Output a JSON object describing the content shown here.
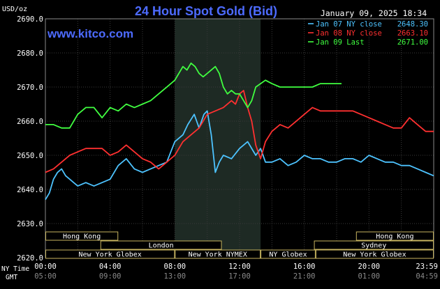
{
  "chart_data": {
    "type": "line",
    "title": "24 Hour Spot Gold (Bid)",
    "site": "www.kitco.com",
    "timestamp": "January 09, 2025 18:34",
    "ylabel": "USD/oz",
    "ylim": [
      2620,
      2690
    ],
    "yticks": [
      "2690.0",
      "2680.0",
      "2670.0",
      "2660.0",
      "2650.0",
      "2640.0",
      "2630.0",
      "2620.0"
    ],
    "xlim": [
      0,
      24
    ],
    "x_row_label": "NY Time",
    "x_ticks": [
      "00:00",
      "04:00",
      "08:00",
      "12:00",
      "16:00",
      "20:00",
      "23:59"
    ],
    "gmt_row_label": "GMT",
    "gmt_ticks": [
      "05:00",
      "09:00",
      "13:00",
      "17:00",
      "21:00",
      "01:00",
      "04:59"
    ],
    "highlight_region": {
      "name": "NY NYMEX",
      "start": 8,
      "end": 13.3
    },
    "grid": true,
    "legend": [
      {
        "name": "Jan 07 NY close",
        "value": "2648.30",
        "color": "#4dc3ff"
      },
      {
        "name": "Jan 08 NY close",
        "value": "2663.10",
        "color": "#ff3030"
      },
      {
        "name": "Jan 09 Last",
        "value": "2671.00",
        "color": "#40ff40"
      }
    ],
    "sessions": [
      {
        "label": "Hong Kong",
        "row": 0,
        "start": 0,
        "end": 4.5
      },
      {
        "label": "Hong Kong",
        "row": 0,
        "start": 19.2,
        "end": 24
      },
      {
        "label": "London",
        "row": 1,
        "start": 3.4,
        "end": 10.9
      },
      {
        "label": "Sydney",
        "row": 1,
        "start": 16.6,
        "end": 24
      },
      {
        "label": "New York Globex",
        "row": 2,
        "start": 0,
        "end": 8
      },
      {
        "label": "New York NYMEX",
        "row": 2,
        "start": 8,
        "end": 13.3
      },
      {
        "label": "NY Globex",
        "row": 2,
        "start": 13.3,
        "end": 16.7
      },
      {
        "label": "New York Globex",
        "row": 2,
        "start": 16.7,
        "end": 24
      }
    ],
    "series": [
      {
        "name": "Jan 07 NY close",
        "color": "#4dc3ff",
        "x": [
          0,
          0.25,
          0.5,
          0.75,
          1.0,
          1.25,
          1.5,
          1.75,
          2.0,
          2.5,
          3.0,
          3.5,
          4.0,
          4.5,
          5.0,
          5.5,
          6.0,
          6.5,
          7.0,
          7.5,
          8.0,
          8.5,
          8.8,
          9.2,
          9.5,
          9.8,
          10.0,
          10.25,
          10.5,
          10.75,
          11.0,
          11.5,
          12.0,
          12.5,
          13.0,
          13.3,
          13.6,
          14.0,
          14.5,
          15.0,
          15.5,
          16.0,
          16.5,
          17.0,
          17.5,
          18.0,
          18.5,
          19.0,
          19.5,
          20.0,
          20.5,
          21.0,
          21.5,
          22.0,
          22.5,
          23.0,
          23.5,
          24.0
        ],
        "y": [
          2637,
          2639,
          2643,
          2645,
          2646,
          2644,
          2643,
          2642,
          2641,
          2642,
          2641,
          2642,
          2643,
          2647,
          2649,
          2646,
          2645,
          2646,
          2647,
          2648,
          2654,
          2656,
          2659,
          2662,
          2658,
          2662,
          2663,
          2656,
          2645,
          2648,
          2650,
          2649,
          2652,
          2654,
          2650,
          2652,
          2648,
          2648,
          2649,
          2647,
          2648,
          2650,
          2649,
          2649,
          2648,
          2648,
          2649,
          2649,
          2648,
          2650,
          2649,
          2648,
          2648,
          2647,
          2647,
          2646,
          2645,
          2644
        ]
      },
      {
        "name": "Jan 08 NY close",
        "color": "#ff3030",
        "x": [
          0,
          0.5,
          1.0,
          1.5,
          2.0,
          2.5,
          3.0,
          3.5,
          4.0,
          4.5,
          5.0,
          5.5,
          6.0,
          6.5,
          7.0,
          7.5,
          8.0,
          8.5,
          9.0,
          9.5,
          10.0,
          10.5,
          11.0,
          11.5,
          11.75,
          12.0,
          12.25,
          12.5,
          12.75,
          13.0,
          13.3,
          13.6,
          14.0,
          14.5,
          15.0,
          15.5,
          16.0,
          16.5,
          17.0,
          17.5,
          18.0,
          18.5,
          19.0,
          19.5,
          20.0,
          20.5,
          21.0,
          21.5,
          22.0,
          22.5,
          23.0,
          23.5,
          24.0
        ],
        "y": [
          2645,
          2646,
          2648,
          2650,
          2651,
          2652,
          2652,
          2652,
          2650,
          2651,
          2653,
          2651,
          2649,
          2648,
          2646,
          2648,
          2650,
          2654,
          2656,
          2658,
          2662,
          2663,
          2664,
          2666,
          2665,
          2668,
          2669,
          2664,
          2660,
          2653,
          2649,
          2654,
          2657,
          2659,
          2658,
          2660,
          2662,
          2664,
          2663,
          2663,
          2663,
          2663,
          2663,
          2662,
          2661,
          2660,
          2659,
          2658,
          2658,
          2661,
          2659,
          2657,
          2657
        ]
      },
      {
        "name": "Jan 09 Last",
        "color": "#40ff40",
        "x": [
          0,
          0.5,
          1.0,
          1.5,
          2.0,
          2.5,
          3.0,
          3.5,
          4.0,
          4.5,
          5.0,
          5.5,
          6.0,
          6.5,
          7.0,
          7.5,
          8.0,
          8.25,
          8.5,
          8.75,
          9.0,
          9.25,
          9.5,
          9.75,
          10.0,
          10.25,
          10.5,
          10.75,
          11.0,
          11.25,
          11.5,
          11.75,
          12.0,
          12.25,
          12.5,
          12.75,
          13.0,
          13.3,
          13.6,
          14.0,
          14.5,
          15.0,
          15.5,
          16.0,
          16.5,
          17.0,
          17.5,
          18.0,
          18.3
        ],
        "y": [
          2659,
          2659,
          2658,
          2658,
          2662,
          2664,
          2664,
          2661,
          2664,
          2663,
          2665,
          2664,
          2665,
          2666,
          2668,
          2670,
          2672,
          2674,
          2676,
          2675,
          2677,
          2676,
          2674,
          2673,
          2674,
          2675,
          2676,
          2674,
          2670,
          2668,
          2669,
          2668,
          2668,
          2666,
          2664,
          2666,
          2670,
          2671,
          2672,
          2671,
          2670,
          2670,
          2670,
          2670,
          2670,
          2671,
          2671,
          2671,
          2671
        ]
      }
    ]
  }
}
